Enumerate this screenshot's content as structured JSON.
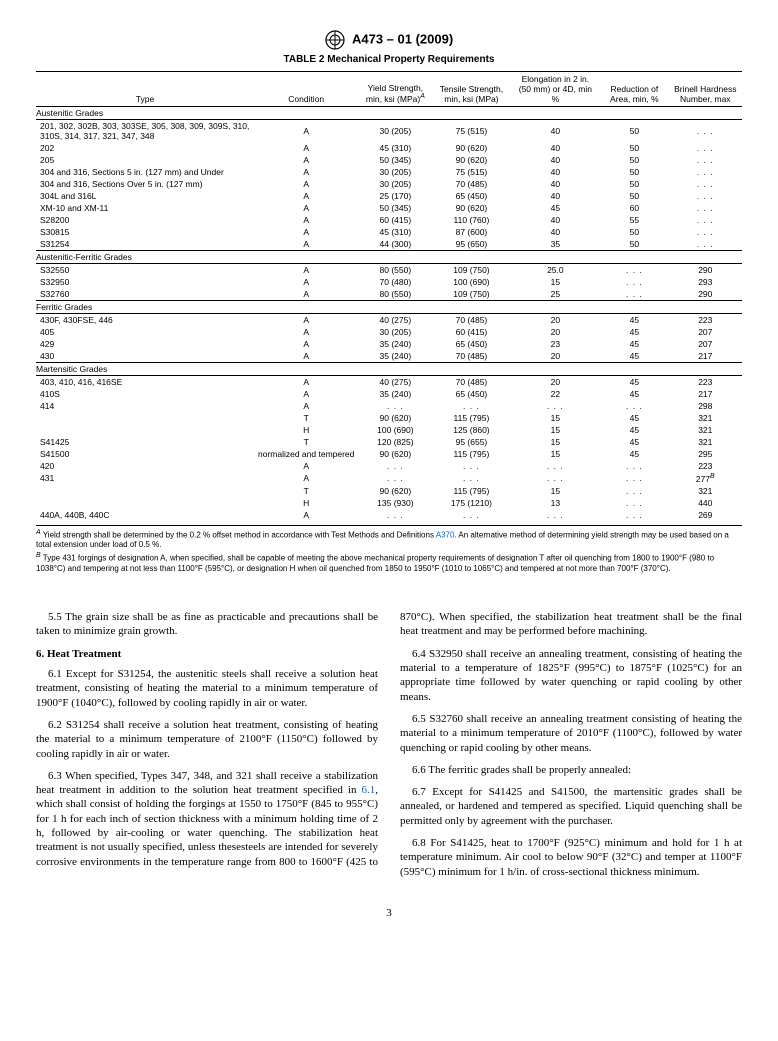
{
  "document": {
    "standard_id": "A473 – 01 (2009)",
    "page_number": "3"
  },
  "table": {
    "title": "TABLE 2 Mechanical Property Requirements",
    "columns": [
      "Type",
      "Condition",
      "Yield Strength, min, ksi (MPa)",
      "Tensile Strength, min, ksi (MPa)",
      "Elongation in 2 in. (50 mm) or 4D, min %",
      "Reduction of Area, min, %",
      "Brinell Hardness Number, max"
    ],
    "col_super": {
      "2": "A"
    },
    "sections": [
      {
        "heading": "Austenitic Grades",
        "rows": [
          [
            "201, 302, 302B, 303, 303SE, 305, 308, 309, 309S, 310, 310S, 314, 317, 321, 347, 348",
            "A",
            "30 (205)",
            "75 (515)",
            "40",
            "50",
            ". . ."
          ],
          [
            "202",
            "A",
            "45 (310)",
            "90 (620)",
            "40",
            "50",
            ". . ."
          ],
          [
            "205",
            "A",
            "50 (345)",
            "90 (620)",
            "40",
            "50",
            ". . ."
          ],
          [
            "304 and 316, Sections 5 in. (127 mm) and Under",
            "A",
            "30 (205)",
            "75 (515)",
            "40",
            "50",
            ". . ."
          ],
          [
            "304 and 316, Sections Over 5 in. (127 mm)",
            "A",
            "30 (205)",
            "70 (485)",
            "40",
            "50",
            ". . ."
          ],
          [
            "304L and 316L",
            "A",
            "25 (170)",
            "65 (450)",
            "40",
            "50",
            ". . ."
          ],
          [
            "XM-10 and XM-11",
            "A",
            "50 (345)",
            "90 (620)",
            "45",
            "60",
            ". . ."
          ],
          [
            "S28200",
            "A",
            "60 (415)",
            "110 (760)",
            "40",
            "55",
            ". . ."
          ],
          [
            "S30815",
            "A",
            "45 (310)",
            "87 (600)",
            "40",
            "50",
            ". . ."
          ],
          [
            "S31254",
            "A",
            "44 (300)",
            "95 (650)",
            "35",
            "50",
            ". . ."
          ]
        ]
      },
      {
        "heading": "Austenitic-Ferritic Grades",
        "rows": [
          [
            "S32550",
            "A",
            "80 (550)",
            "109 (750)",
            "25.0",
            ". . .",
            "290"
          ],
          [
            "S32950",
            "A",
            "70 (480)",
            "100 (690)",
            "15",
            ". . .",
            "293"
          ],
          [
            "S32760",
            "A",
            "80 (550)",
            "109 (750)",
            "25",
            ". . .",
            "290"
          ]
        ]
      },
      {
        "heading": "Ferritic Grades",
        "rows": [
          [
            "430F, 430FSE, 446",
            "A",
            "40 (275)",
            "70 (485)",
            "20",
            "45",
            "223"
          ],
          [
            "405",
            "A",
            "30 (205)",
            "60 (415)",
            "20",
            "45",
            "207"
          ],
          [
            "429",
            "A",
            "35 (240)",
            "65 (450)",
            "23",
            "45",
            "207"
          ],
          [
            "430",
            "A",
            "35 (240)",
            "70 (485)",
            "20",
            "45",
            "217"
          ]
        ]
      },
      {
        "heading": "Martensitic Grades",
        "rows": [
          [
            "403, 410, 416, 416SE",
            "A",
            "40 (275)",
            "70 (485)",
            "20",
            "45",
            "223"
          ],
          [
            "410S",
            "A",
            "35 (240)",
            "65 (450)",
            "22",
            "45",
            "217"
          ],
          [
            "414",
            "A",
            ". . .",
            ". . .",
            ". . .",
            ". . .",
            "298"
          ],
          [
            "",
            "T",
            "90 (620)",
            "115 (795)",
            "15",
            "45",
            "321"
          ],
          [
            "",
            "H",
            "100 (690)",
            "125 (860)",
            "15",
            "45",
            "321"
          ],
          [
            "S41425",
            "T",
            "120 (825)",
            "95 (655)",
            "15",
            "45",
            "321"
          ],
          [
            "S41500",
            "normalized and tempered",
            "90 (620)",
            "115 (795)",
            "15",
            "45",
            "295"
          ],
          [
            "420",
            "A",
            ". . .",
            ". . .",
            ". . .",
            ". . .",
            "223"
          ],
          [
            "431",
            "A",
            ". . .",
            ". . .",
            ". . .",
            ". . .",
            "277"
          ],
          [
            "",
            "T",
            "90 (620)",
            "115 (795)",
            "15",
            ". . .",
            "321"
          ],
          [
            "",
            "H",
            "135 (930)",
            "175 (1210)",
            "13",
            ". . .",
            "440"
          ],
          [
            "440A, 440B, 440C",
            "A",
            ". . .",
            ". . .",
            ". . .",
            ". . .",
            "269"
          ]
        ],
        "row_super": {
          "8": {
            "6": "B"
          }
        }
      }
    ],
    "footnotes": [
      {
        "mark": "A",
        "text_pre": "Yield strength shall be determined by the 0.2 % offset method in accordance with Test Methods and Definitions ",
        "ref": "A370",
        "text_post": ". An alternative method of determining yield strength may be used based on a total extension under load of 0.5 %."
      },
      {
        "mark": "B",
        "text_pre": "Type 431 forgings of designation A, when specified, shall be capable of meeting the above mechanical property requirements of designation T after oil quenching from 1800 to 1900°F (980 to 1038°C) and tempering at not less than 1100°F (595°C), or designation H when oil quenched from 1850 to 1950°F (1010 to 1065°C) and tempered at not more than 700°F (370°C).",
        "ref": "",
        "text_post": ""
      }
    ]
  },
  "body": {
    "p55": "5.5 The grain size shall be as fine as practicable and precautions shall be taken to minimize grain growth.",
    "h6": "6. Heat Treatment",
    "p61": "6.1 Except for S31254, the austenitic steels shall receive a solution heat treatment, consisting of heating the material to a minimum temperature of 1900°F (1040°C), followed by cooling rapidly in air or water.",
    "p62": "6.2 S31254 shall receive a solution heat treatment, consisting of heating the material to a minimum temperature of 2100°F (1150°C) followed by cooling rapidly in air or water.",
    "p63a": "6.3 When specified, Types 347, 348, and 321 shall receive a stabilization heat treatment in addition to the solution heat treatment specified in ",
    "p63ref": "6.1",
    "p63b": ", which shall consist of holding the forgings at 1550 to 1750°F (845 to 955°C) for 1 h for each inch of section thickness with a minimum holding time of 2 h, followed by air-cooling or water quenching. The stabilization heat treatment is not usually specified, unless thesesteels are intended for severely corrosive environments in the temperature range from 800 to 1600°F (425 to 870°C). When specified, the stabilization heat treatment shall be the final heat treatment and may be performed before machining.",
    "p64": "6.4 S32950 shall receive an annealing treatment, consisting of heating the material to a temperature of 1825°F (995°C) to 1875°F (1025°C) for an appropriate time followed by water quenching or rapid cooling by other means.",
    "p65": "6.5 S32760 shall receive an annealing treatment consisting of heating the material to a minimum temperature of 2010°F (1100°C), followed by water quenching or rapid cooling by other means.",
    "p66": "6.6 The ferritic grades shall be properly annealed:",
    "p67": "6.7 Except for S41425 and S41500, the martensitic grades shall be annealed, or hardened and tempered as specified. Liquid quenching shall be permitted only by agreement with the purchaser.",
    "p68": "6.8 For S41425, heat to 1700°F (925°C) minimum and hold for 1 h at temperature minimum. Air cool to below 90°F (32°C) and temper at 1100°F (595°C) minimum for 1 h/in. of cross-sectional thickness minimum."
  }
}
